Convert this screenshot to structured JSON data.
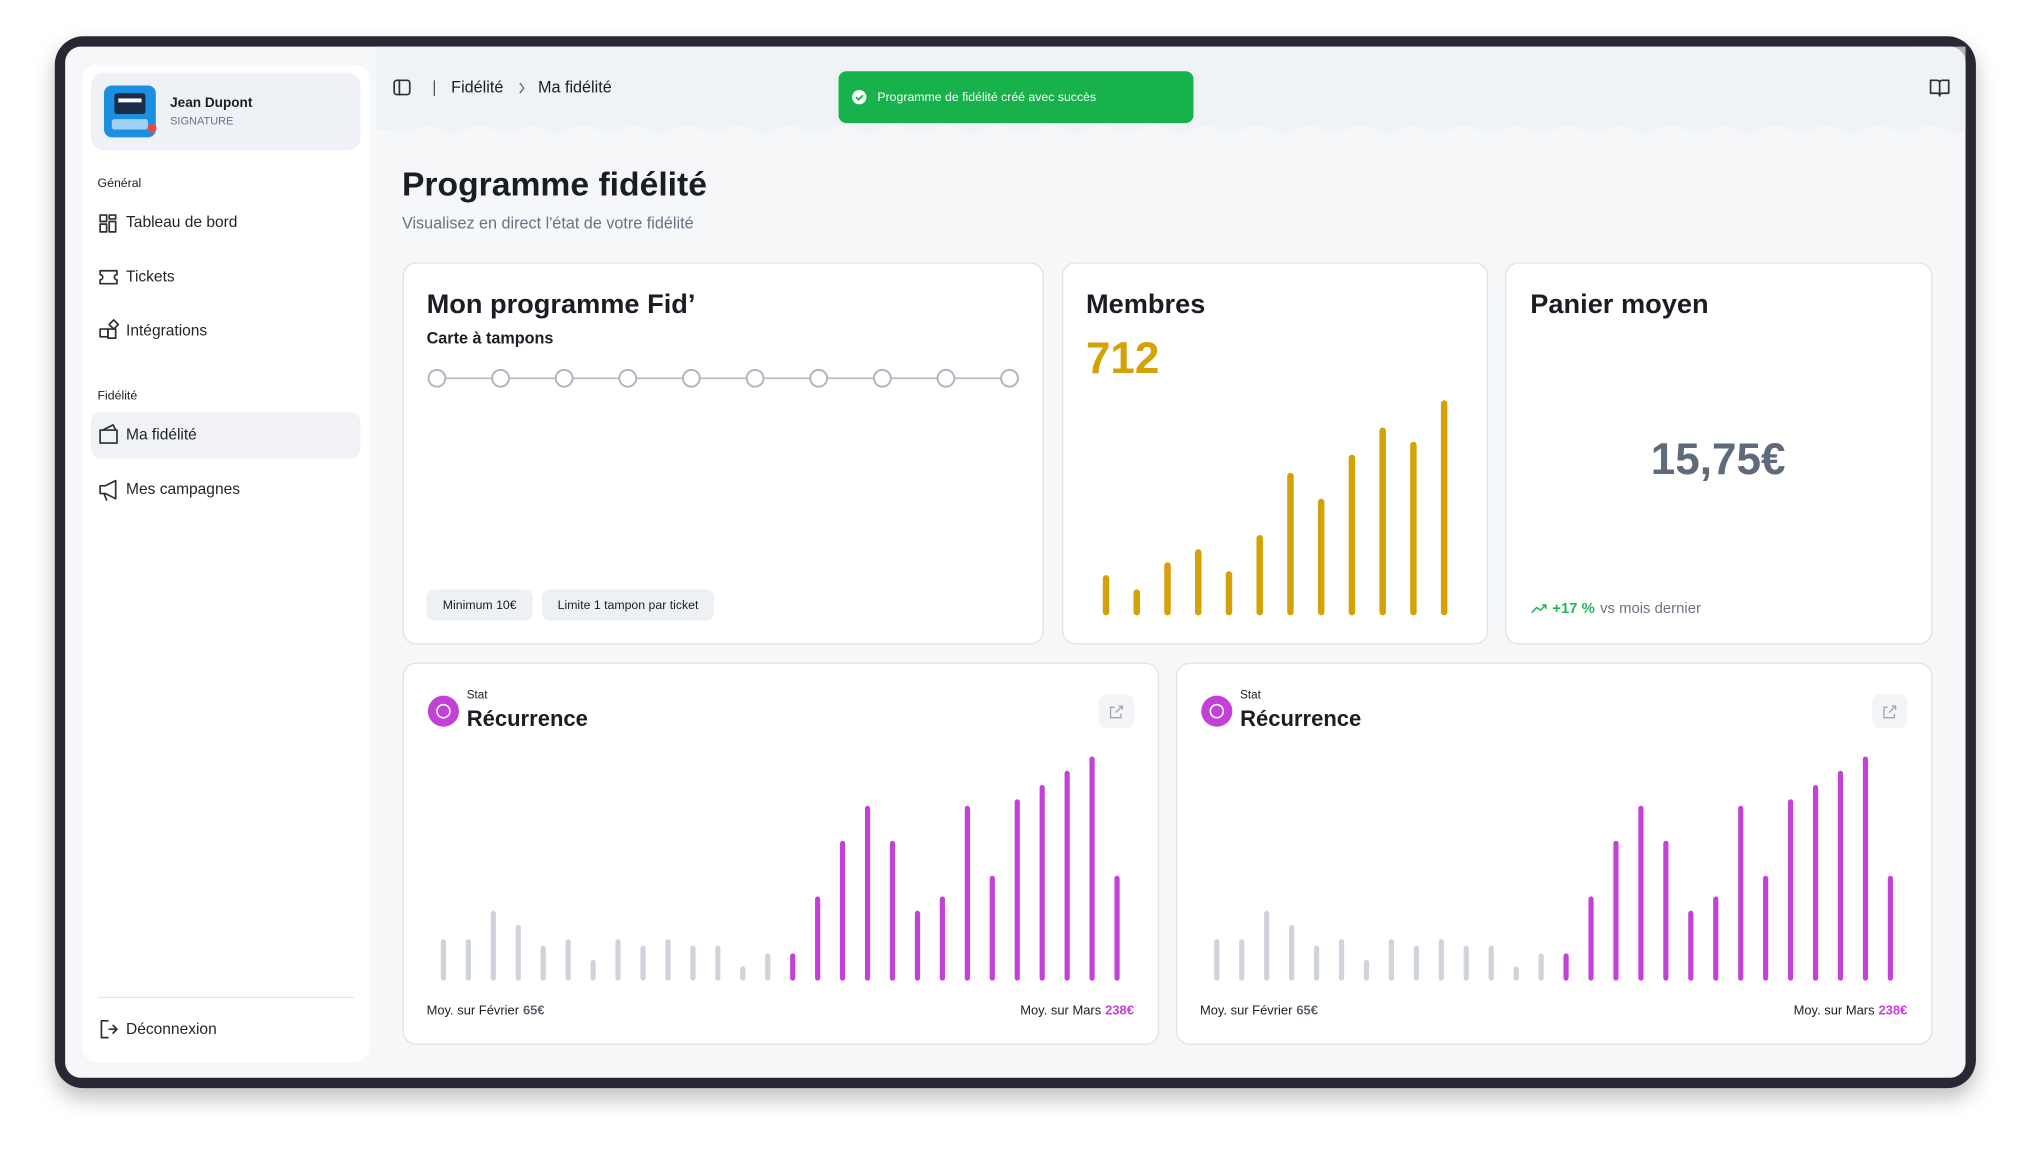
{
  "sidebar": {
    "user": {
      "name": "Jean Dupont",
      "plan": "SIGNATURE"
    },
    "sections": [
      {
        "title": "Général",
        "items": [
          "Tableau de bord",
          "Tickets",
          "Intégrations"
        ]
      },
      {
        "title": "Fidélité",
        "items": [
          "Ma fidélité",
          "Mes campagnes"
        ]
      }
    ],
    "logout": "Déconnexion"
  },
  "breadcrumb": [
    "Fidélité",
    "Ma fidélité"
  ],
  "toast": "Programme de fidélité créé avec succès",
  "page": {
    "title": "Programme fidélité",
    "subtitle": "Visualisez en direct l'état de votre fidélité"
  },
  "loyalty_card": {
    "title": "Mon programme Fid’",
    "subtitle": "Carte à tampons",
    "rules": [
      "Minimum 10€",
      "Limite 1 tampon par ticket"
    ]
  },
  "members_card": {
    "title": "Membres",
    "value": "712",
    "chart": {
      "type": "bar",
      "values": [
        31,
        20,
        41,
        51,
        34,
        62,
        110,
        90,
        124,
        145,
        134,
        166
      ],
      "color": "#d4a106",
      "ylim": [
        0,
        170
      ]
    }
  },
  "basket_card": {
    "title": "Panier moyen",
    "value": "15,75€",
    "change": "+17 %",
    "change_note": "vs mois dernier"
  },
  "stat_cards": [
    {
      "label": "Stat",
      "title": "Récurrence",
      "chart": {
        "type": "bar",
        "ylim": [
          0,
          180
        ],
        "series": [
          {
            "color": "#cfd4da",
            "values": [
              32,
              32,
              54,
              43,
              27,
              32,
              16,
              32,
              27,
              32,
              27,
              27,
              11,
              21
            ]
          },
          {
            "color": "#c341d6",
            "values": [
              21,
              65,
              108,
              135,
              108,
              54,
              65,
              135,
              81,
              140,
              151,
              162,
              173,
              81
            ]
          }
        ]
      },
      "left_note": "Moy. sur Février",
      "left_value": "65€",
      "right_note": "Moy. sur Mars",
      "right_value": "238€"
    },
    {
      "label": "Stat",
      "title": "Récurrence",
      "chart": {
        "type": "bar",
        "ylim": [
          0,
          180
        ],
        "series": [
          {
            "color": "#cfd4da",
            "values": [
              32,
              32,
              54,
              43,
              27,
              32,
              16,
              32,
              27,
              32,
              27,
              27,
              11,
              21
            ]
          },
          {
            "color": "#c341d6",
            "values": [
              21,
              65,
              108,
              135,
              108,
              54,
              65,
              135,
              81,
              140,
              151,
              162,
              173,
              81
            ]
          }
        ]
      },
      "left_note": "Moy. sur Février",
      "left_value": "65€",
      "right_note": "Moy. sur Mars",
      "right_value": "238€"
    }
  ]
}
